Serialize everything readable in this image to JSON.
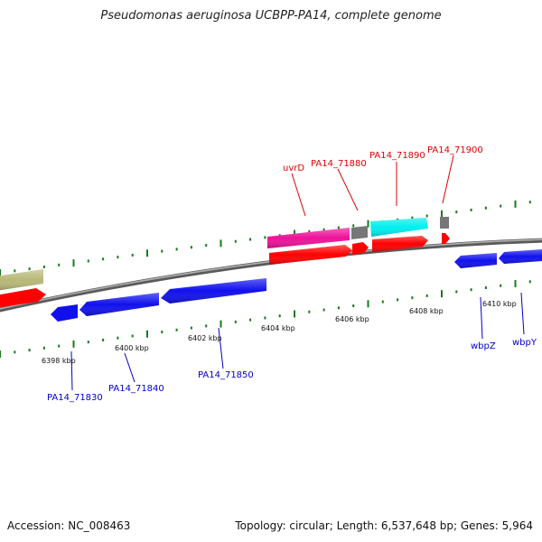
{
  "title": "Pseudomonas aeruginosa UCBPP-PA14, complete genome",
  "footer": {
    "accession": "Accession: NC_008463",
    "topology": "Topology: circular; Length: 6,537,648 bp; Genes: 5,964"
  },
  "colors": {
    "backbone": "#8a8a8a",
    "red": "#ff0000",
    "blue": "#1010ee",
    "magenta": "#ee1199",
    "cyan": "#00eeee",
    "gray": "#777777",
    "olive": "#b8b878",
    "tick": "#1a7a1a",
    "label_red": "#e00000",
    "label_blue": "#0000cc"
  },
  "scale_labels": [
    "6398 kbp",
    "6400 kbp",
    "6402 kbp",
    "6404 kbp",
    "6406 kbp",
    "6408 kbp",
    "6410 kbp"
  ],
  "gene_labels_top": [
    "uvrD",
    "PA14_71880",
    "PA14_71890",
    "PA14_71900"
  ],
  "gene_labels_bottom": [
    "PA14_71830",
    "PA14_71840",
    "PA14_71850",
    "wbpZ",
    "wbpY"
  ]
}
